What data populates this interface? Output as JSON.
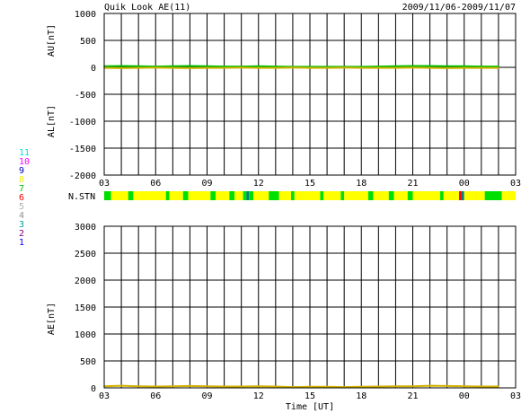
{
  "header": {
    "title": "Quik Look AE(11)",
    "date_range": "2009/11/06-2009/11/07"
  },
  "legend_station_counts": [
    {
      "label": "11",
      "color": "#00e0e0"
    },
    {
      "label": "10",
      "color": "#ff00ff"
    },
    {
      "label": "9",
      "color": "#0000c0"
    },
    {
      "label": "8",
      "color": "#f0f000"
    },
    {
      "label": "7",
      "color": "#00c000"
    },
    {
      "label": "6",
      "color": "#ff0000"
    },
    {
      "label": "5",
      "color": "#b0b0b0"
    },
    {
      "label": "4",
      "color": "#909090"
    },
    {
      "label": "3",
      "color": "#00a0a0"
    },
    {
      "label": "2",
      "color": "#800080"
    },
    {
      "label": "1",
      "color": "#0000ff"
    }
  ],
  "x_axis": {
    "tick_labels": [
      "03",
      "06",
      "09",
      "12",
      "15",
      "18",
      "21",
      "00",
      "03"
    ],
    "xlabel": "Time [UT]",
    "range_hours": [
      3,
      27
    ]
  },
  "nstn_label": "N.STN",
  "colors": {
    "au_line": "#00c000",
    "al_line": "#d0b000",
    "ae_line": "#d0b000",
    "ao_line": "#00a000",
    "nstn_8": "#ffff00",
    "nstn_7": "#00e000",
    "nstn_6": "#ff0000",
    "nstn_3": "#008080"
  },
  "chart_data": [
    {
      "type": "line",
      "panel": "AU/AL",
      "ylabel_top": "AU[nT]",
      "ylabel_bottom": "AL[nT]",
      "ylim": [
        -2000,
        1000
      ],
      "y_ticks": [
        "1000",
        "500",
        "0",
        "-500",
        "-1000",
        "-1500",
        "-2000"
      ],
      "x_hours": [
        3,
        4,
        5,
        6,
        7,
        8,
        9,
        10,
        11,
        12,
        13,
        14,
        15,
        16,
        17,
        18,
        19,
        20,
        21,
        22,
        23,
        24,
        25,
        26
      ],
      "series": [
        {
          "key": "AU",
          "values": [
            20,
            25,
            20,
            15,
            20,
            25,
            20,
            15,
            15,
            20,
            15,
            10,
            10,
            10,
            10,
            10,
            15,
            20,
            25,
            25,
            20,
            20,
            15,
            15
          ]
        },
        {
          "key": "AL",
          "values": [
            -10,
            -15,
            -10,
            -5,
            -10,
            -15,
            -10,
            -10,
            -5,
            -10,
            -10,
            -5,
            -10,
            -10,
            -5,
            -10,
            -10,
            -10,
            -5,
            -10,
            -15,
            -10,
            -10,
            -10
          ]
        }
      ]
    },
    {
      "type": "line",
      "panel": "AE",
      "ylabel": "AE[nT]",
      "ylim": [
        0,
        3000
      ],
      "y_ticks": [
        "3000",
        "2500",
        "2000",
        "1500",
        "1000",
        "500",
        "0"
      ],
      "x_hours": [
        3,
        4,
        5,
        6,
        7,
        8,
        9,
        10,
        11,
        12,
        13,
        14,
        15,
        16,
        17,
        18,
        19,
        20,
        21,
        22,
        23,
        24,
        25,
        26
      ],
      "series": [
        {
          "key": "AE",
          "values": [
            30,
            40,
            30,
            25,
            30,
            35,
            30,
            25,
            25,
            30,
            25,
            15,
            20,
            20,
            15,
            20,
            25,
            30,
            30,
            40,
            35,
            30,
            25,
            25
          ]
        }
      ]
    },
    {
      "type": "bar",
      "panel": "N.STN",
      "segments": [
        {
          "start": 3.0,
          "end": 3.4,
          "stations": 7
        },
        {
          "start": 3.4,
          "end": 4.4,
          "stations": 8
        },
        {
          "start": 4.4,
          "end": 4.7,
          "stations": 7
        },
        {
          "start": 4.7,
          "end": 6.6,
          "stations": 8
        },
        {
          "start": 6.6,
          "end": 6.8,
          "stations": 7
        },
        {
          "start": 6.8,
          "end": 7.6,
          "stations": 8
        },
        {
          "start": 7.6,
          "end": 7.9,
          "stations": 7
        },
        {
          "start": 7.9,
          "end": 9.2,
          "stations": 8
        },
        {
          "start": 9.2,
          "end": 9.5,
          "stations": 7
        },
        {
          "start": 9.5,
          "end": 10.3,
          "stations": 8
        },
        {
          "start": 10.3,
          "end": 10.6,
          "stations": 7
        },
        {
          "start": 10.6,
          "end": 11.1,
          "stations": 8
        },
        {
          "start": 11.1,
          "end": 11.3,
          "stations": 7
        },
        {
          "start": 11.3,
          "end": 11.45,
          "stations": 3
        },
        {
          "start": 11.45,
          "end": 11.7,
          "stations": 7
        },
        {
          "start": 11.7,
          "end": 12.6,
          "stations": 8
        },
        {
          "start": 12.6,
          "end": 13.2,
          "stations": 7
        },
        {
          "start": 13.2,
          "end": 13.9,
          "stations": 8
        },
        {
          "start": 13.9,
          "end": 14.1,
          "stations": 7
        },
        {
          "start": 14.1,
          "end": 15.6,
          "stations": 8
        },
        {
          "start": 15.6,
          "end": 15.8,
          "stations": 7
        },
        {
          "start": 15.8,
          "end": 16.8,
          "stations": 8
        },
        {
          "start": 16.8,
          "end": 17.0,
          "stations": 7
        },
        {
          "start": 17.0,
          "end": 18.4,
          "stations": 8
        },
        {
          "start": 18.4,
          "end": 18.7,
          "stations": 7
        },
        {
          "start": 18.7,
          "end": 19.6,
          "stations": 8
        },
        {
          "start": 19.6,
          "end": 19.9,
          "stations": 7
        },
        {
          "start": 19.9,
          "end": 20.7,
          "stations": 8
        },
        {
          "start": 20.7,
          "end": 21.0,
          "stations": 7
        },
        {
          "start": 21.0,
          "end": 22.6,
          "stations": 8
        },
        {
          "start": 22.6,
          "end": 22.8,
          "stations": 7
        },
        {
          "start": 22.8,
          "end": 23.7,
          "stations": 8
        },
        {
          "start": 23.7,
          "end": 23.85,
          "stations": 6
        },
        {
          "start": 23.85,
          "end": 24.0,
          "stations": 3
        },
        {
          "start": 24.0,
          "end": 25.2,
          "stations": 8
        },
        {
          "start": 25.2,
          "end": 26.2,
          "stations": 7
        },
        {
          "start": 26.2,
          "end": 27.0,
          "stations": 8
        }
      ]
    }
  ]
}
